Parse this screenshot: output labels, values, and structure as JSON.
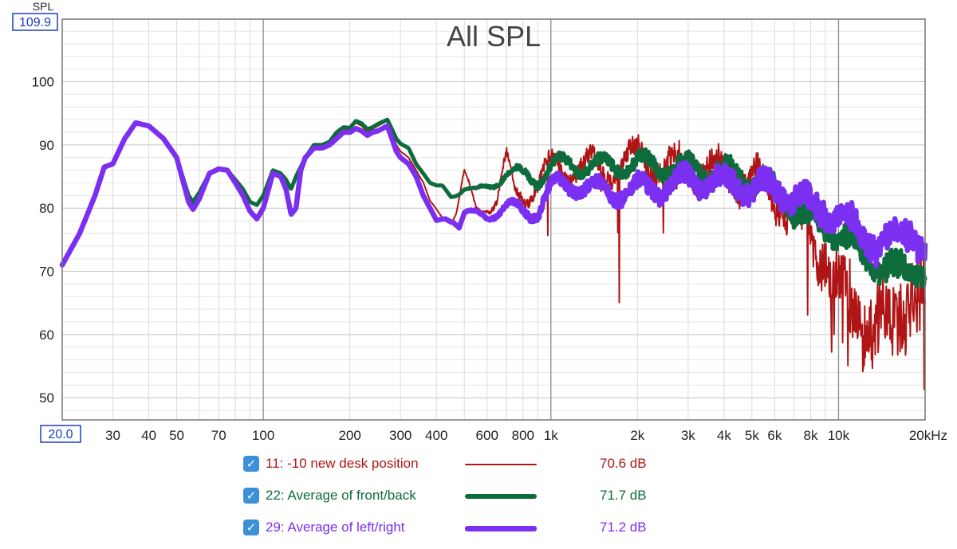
{
  "chart_data": {
    "type": "line",
    "title": "All SPL",
    "ylabel": "SPL",
    "xlabel": "",
    "x_scale": "log",
    "xlim": [
      20,
      20000
    ],
    "ylim": [
      46.5,
      109.9
    ],
    "xlim_label": "20.0",
    "ylim_label": "109.9",
    "x_tick_labels": [
      {
        "v": 30,
        "t": "30"
      },
      {
        "v": 40,
        "t": "40"
      },
      {
        "v": 50,
        "t": "50"
      },
      {
        "v": 70,
        "t": "70"
      },
      {
        "v": 100,
        "t": "100"
      },
      {
        "v": 200,
        "t": "200"
      },
      {
        "v": 300,
        "t": "300"
      },
      {
        "v": 400,
        "t": "400"
      },
      {
        "v": 600,
        "t": "600"
      },
      {
        "v": 800,
        "t": "800"
      },
      {
        "v": 1000,
        "t": "1k"
      },
      {
        "v": 2000,
        "t": "2k"
      },
      {
        "v": 3000,
        "t": "3k"
      },
      {
        "v": 4000,
        "t": "4k"
      },
      {
        "v": 5000,
        "t": "5k"
      },
      {
        "v": 6000,
        "t": "6k"
      },
      {
        "v": 8000,
        "t": "8k"
      },
      {
        "v": 10000,
        "t": "10k"
      },
      {
        "v": 20000,
        "t": "20kHz"
      }
    ],
    "y_tick_labels": [
      50,
      60,
      70,
      80,
      90,
      100
    ],
    "series": [
      {
        "id": 11,
        "name": "11: -10 new desk position",
        "value_label": "70.6 dB",
        "color": "#b01515",
        "noise": {
          "start": 350,
          "amp": 2.5,
          "fine": 2.6,
          "dips": 7,
          "dip_min": 47,
          "hf_extra": 10
        },
        "points": [
          [
            20,
            71
          ],
          [
            23,
            76
          ],
          [
            26,
            82
          ],
          [
            28,
            86.5
          ],
          [
            30,
            87
          ],
          [
            33,
            91
          ],
          [
            36,
            93.5
          ],
          [
            40,
            93
          ],
          [
            45,
            91
          ],
          [
            50,
            88
          ],
          [
            55,
            82
          ],
          [
            57,
            80.5
          ],
          [
            60,
            82
          ],
          [
            65,
            85.5
          ],
          [
            70,
            86.3
          ],
          [
            75,
            86
          ],
          [
            80,
            84.5
          ],
          [
            85,
            83
          ],
          [
            90,
            81
          ],
          [
            95,
            80.5
          ],
          [
            100,
            82
          ],
          [
            108,
            86
          ],
          [
            115,
            85
          ],
          [
            120,
            84
          ],
          [
            125,
            83
          ],
          [
            130,
            85
          ],
          [
            140,
            88
          ],
          [
            150,
            90
          ],
          [
            160,
            90
          ],
          [
            170,
            90
          ],
          [
            180,
            91.5
          ],
          [
            190,
            92.5
          ],
          [
            200,
            92.5
          ],
          [
            210,
            93.5
          ],
          [
            220,
            93
          ],
          [
            230,
            92
          ],
          [
            240,
            92.5
          ],
          [
            250,
            93
          ],
          [
            270,
            93.8
          ],
          [
            280,
            92
          ],
          [
            290,
            90
          ],
          [
            300,
            89
          ],
          [
            320,
            88
          ],
          [
            340,
            86
          ],
          [
            360,
            84
          ],
          [
            380,
            81
          ],
          [
            400,
            80
          ],
          [
            420,
            79
          ],
          [
            450,
            78
          ],
          [
            470,
            79
          ],
          [
            500,
            85
          ],
          [
            550,
            80
          ],
          [
            600,
            81
          ],
          [
            650,
            81
          ],
          [
            700,
            87
          ],
          [
            750,
            82
          ],
          [
            800,
            83
          ],
          [
            900,
            84
          ],
          [
            1000,
            86
          ],
          [
            1200,
            87
          ],
          [
            1500,
            86
          ],
          [
            2000,
            88
          ],
          [
            2500,
            86.5
          ],
          [
            3000,
            86.5
          ],
          [
            4000,
            85.5
          ],
          [
            5000,
            84.5
          ],
          [
            6000,
            82
          ],
          [
            7000,
            79
          ],
          [
            8000,
            76
          ],
          [
            9000,
            72
          ],
          [
            10000,
            68
          ],
          [
            12000,
            64
          ],
          [
            14000,
            62
          ],
          [
            16000,
            64
          ],
          [
            18000,
            68
          ],
          [
            20000,
            66
          ]
        ]
      },
      {
        "id": 22,
        "name": "22: Average of front/back",
        "value_label": "71.7 dB",
        "color": "#0e6b3c",
        "noise": {
          "start": 380,
          "amp": 1.5,
          "fine": 1.7,
          "dips": 0,
          "dip_min": 0,
          "hf_extra": 1.5
        },
        "points": [
          [
            20,
            71
          ],
          [
            23,
            76
          ],
          [
            26,
            82
          ],
          [
            28,
            86.5
          ],
          [
            30,
            87
          ],
          [
            33,
            91
          ],
          [
            36,
            93.5
          ],
          [
            40,
            93
          ],
          [
            45,
            91
          ],
          [
            50,
            88
          ],
          [
            55,
            82
          ],
          [
            57,
            81
          ],
          [
            60,
            82.5
          ],
          [
            65,
            85.5
          ],
          [
            70,
            86.3
          ],
          [
            75,
            86
          ],
          [
            80,
            84.5
          ],
          [
            85,
            83
          ],
          [
            90,
            81
          ],
          [
            95,
            80.5
          ],
          [
            100,
            82
          ],
          [
            108,
            86
          ],
          [
            115,
            85.5
          ],
          [
            120,
            84.5
          ],
          [
            125,
            83
          ],
          [
            130,
            85
          ],
          [
            140,
            88
          ],
          [
            150,
            90
          ],
          [
            160,
            90
          ],
          [
            170,
            90.5
          ],
          [
            180,
            92
          ],
          [
            190,
            92.8
          ],
          [
            200,
            92.7
          ],
          [
            210,
            93.8
          ],
          [
            220,
            93.4
          ],
          [
            230,
            92.5
          ],
          [
            240,
            92.8
          ],
          [
            250,
            93.3
          ],
          [
            270,
            94
          ],
          [
            280,
            92.5
          ],
          [
            290,
            91
          ],
          [
            300,
            90.2
          ],
          [
            320,
            89.5
          ],
          [
            340,
            87
          ],
          [
            360,
            85.5
          ],
          [
            380,
            84
          ],
          [
            400,
            83.5
          ],
          [
            420,
            83.5
          ],
          [
            450,
            82
          ],
          [
            480,
            82.5
          ],
          [
            500,
            83
          ],
          [
            550,
            82.5
          ],
          [
            600,
            83.5
          ],
          [
            700,
            85.5
          ],
          [
            800,
            85
          ],
          [
            900,
            85
          ],
          [
            1000,
            86.5
          ],
          [
            1200,
            87
          ],
          [
            1500,
            86.5
          ],
          [
            2000,
            87
          ],
          [
            2500,
            86.5
          ],
          [
            3000,
            86.5
          ],
          [
            4000,
            85.5
          ],
          [
            5000,
            84.5
          ],
          [
            6000,
            82.5
          ],
          [
            7000,
            80
          ],
          [
            8000,
            78
          ],
          [
            9000,
            77
          ],
          [
            10000,
            76
          ],
          [
            12000,
            73
          ],
          [
            14000,
            71
          ],
          [
            16000,
            70
          ],
          [
            18000,
            71
          ],
          [
            20000,
            70
          ]
        ]
      },
      {
        "id": 29,
        "name": "29: Average of left/right",
        "value_label": "71.2 dB",
        "color": "#7b2ff0",
        "noise": {
          "start": 380,
          "amp": 1.6,
          "fine": 1.9,
          "dips": 0,
          "dip_min": 0,
          "hf_extra": 1.5
        },
        "points": [
          [
            20,
            71
          ],
          [
            23,
            76
          ],
          [
            26,
            82
          ],
          [
            28,
            86.5
          ],
          [
            30,
            87
          ],
          [
            33,
            91
          ],
          [
            36,
            93.5
          ],
          [
            40,
            93
          ],
          [
            45,
            91
          ],
          [
            50,
            88
          ],
          [
            55,
            81
          ],
          [
            57,
            79.8
          ],
          [
            60,
            81.5
          ],
          [
            65,
            85.5
          ],
          [
            70,
            86.2
          ],
          [
            75,
            86
          ],
          [
            80,
            84
          ],
          [
            85,
            82
          ],
          [
            90,
            79.5
          ],
          [
            95,
            78.3
          ],
          [
            100,
            80
          ],
          [
            108,
            85.5
          ],
          [
            115,
            85
          ],
          [
            120,
            83
          ],
          [
            125,
            79
          ],
          [
            130,
            80
          ],
          [
            135,
            86
          ],
          [
            140,
            88
          ],
          [
            150,
            89.5
          ],
          [
            160,
            89.5
          ],
          [
            170,
            90
          ],
          [
            180,
            91
          ],
          [
            190,
            92
          ],
          [
            200,
            92
          ],
          [
            210,
            92.6
          ],
          [
            220,
            92.2
          ],
          [
            230,
            91.5
          ],
          [
            240,
            92
          ],
          [
            250,
            92.2
          ],
          [
            270,
            93
          ],
          [
            280,
            91
          ],
          [
            290,
            89
          ],
          [
            300,
            88
          ],
          [
            320,
            87
          ],
          [
            340,
            85
          ],
          [
            360,
            82
          ],
          [
            380,
            80
          ],
          [
            400,
            78
          ],
          [
            430,
            78.5
          ],
          [
            460,
            78
          ],
          [
            480,
            77
          ],
          [
            500,
            79
          ],
          [
            550,
            79
          ],
          [
            600,
            79
          ],
          [
            700,
            80
          ],
          [
            800,
            79.5
          ],
          [
            900,
            80
          ],
          [
            1000,
            83
          ],
          [
            1200,
            84
          ],
          [
            1500,
            82.5
          ],
          [
            2000,
            83
          ],
          [
            2500,
            83.5
          ],
          [
            3000,
            84.5
          ],
          [
            4000,
            84
          ],
          [
            5000,
            83.5
          ],
          [
            6000,
            83
          ],
          [
            7000,
            82
          ],
          [
            8000,
            80.5
          ],
          [
            9000,
            80
          ],
          [
            10000,
            79
          ],
          [
            12000,
            76
          ],
          [
            14000,
            74
          ],
          [
            16000,
            76
          ],
          [
            18000,
            77
          ],
          [
            20000,
            72
          ]
        ]
      }
    ]
  }
}
